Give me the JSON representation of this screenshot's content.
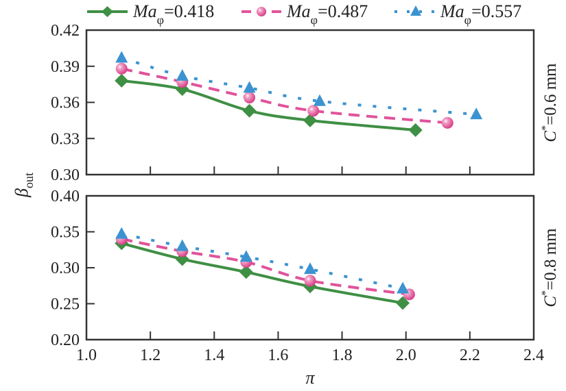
{
  "chart_data": {
    "type": "line",
    "xlabel": "π",
    "ylabel": "β",
    "ylabel_sub": "out",
    "xlim": [
      1.0,
      2.4
    ],
    "xticks": [
      "1.0",
      "1.2",
      "1.4",
      "1.6",
      "1.8",
      "2.0",
      "2.2",
      "2.4"
    ],
    "legend": {
      "placement": "top",
      "entries": [
        {
          "prefix": "Ma",
          "sub": "φ",
          "suffix": "=0.418"
        },
        {
          "prefix": "Ma",
          "sub": "φ",
          "suffix": "=0.487"
        },
        {
          "prefix": "Ma",
          "sub": "φ",
          "suffix": "=0.557"
        }
      ]
    },
    "series_styles": [
      {
        "name": "Ma_φ=0.418",
        "color": "#3f8f44",
        "line": "solid",
        "marker": "diamond"
      },
      {
        "name": "Ma_φ=0.487",
        "color": "#e0539b",
        "line": "dashed",
        "marker": "sphere"
      },
      {
        "name": "Ma_φ=0.557",
        "color": "#3b93d1",
        "line": "dotted",
        "marker": "triangle"
      }
    ],
    "panels": [
      {
        "label_prefix": "C",
        "label_sup": "*",
        "label_suffix": "=0.6 mm",
        "ylim": [
          0.3,
          0.42
        ],
        "yticks": [
          "0.30",
          "0.33",
          "0.36",
          "0.39",
          "0.42"
        ],
        "series": [
          {
            "name": "Ma_φ=0.418",
            "x": [
              1.11,
              1.3,
              1.51,
              1.7,
              2.03
            ],
            "y": [
              0.378,
              0.371,
              0.353,
              0.345,
              0.337
            ]
          },
          {
            "name": "Ma_φ=0.487",
            "x": [
              1.11,
              1.3,
              1.51,
              1.71,
              2.13
            ],
            "y": [
              0.388,
              0.377,
              0.364,
              0.353,
              0.343
            ]
          },
          {
            "name": "Ma_φ=0.557",
            "x": [
              1.11,
              1.3,
              1.51,
              1.73,
              2.22
            ],
            "y": [
              0.397,
              0.382,
              0.372,
              0.361,
              0.35
            ]
          }
        ]
      },
      {
        "label_prefix": "C",
        "label_sup": "*",
        "label_suffix": "=0.8 mm",
        "ylim": [
          0.2,
          0.4
        ],
        "yticks": [
          "0.20",
          "0.25",
          "0.30",
          "0.35",
          "0.40"
        ],
        "series": [
          {
            "name": "Ma_φ=0.418",
            "x": [
              1.11,
              1.3,
              1.5,
              1.7,
              1.99
            ],
            "y": [
              0.334,
              0.312,
              0.294,
              0.274,
              0.251
            ]
          },
          {
            "name": "Ma_φ=0.487",
            "x": [
              1.11,
              1.3,
              1.5,
              1.7,
              2.01
            ],
            "y": [
              0.34,
              0.323,
              0.308,
              0.282,
              0.263
            ]
          },
          {
            "name": "Ma_φ=0.557",
            "x": [
              1.11,
              1.3,
              1.5,
              1.7,
              1.99
            ],
            "y": [
              0.347,
              0.33,
              0.315,
              0.298,
              0.271
            ]
          }
        ]
      }
    ]
  }
}
